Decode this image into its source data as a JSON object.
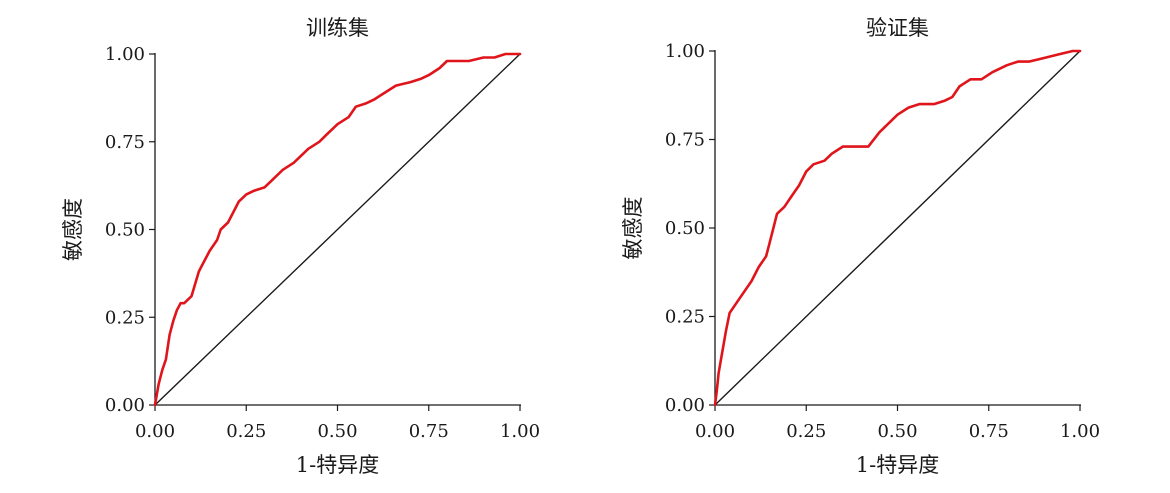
{
  "chart_data": [
    {
      "type": "line",
      "title": "训练集",
      "xlabel": "1-特异度",
      "ylabel": "敏感度",
      "xlim": [
        0,
        1
      ],
      "ylim": [
        0,
        1
      ],
      "xticks": [
        "0.00",
        "0.25",
        "0.50",
        "0.75",
        "1.00"
      ],
      "yticks": [
        "0.00",
        "0.25",
        "0.50",
        "0.75",
        "1.00"
      ],
      "grid": false,
      "series": [
        {
          "color": "#e0151b",
          "x": [
            0,
            0.005,
            0.01,
            0.02,
            0.03,
            0.04,
            0.05,
            0.06,
            0.07,
            0.08,
            0.1,
            0.12,
            0.13,
            0.14,
            0.15,
            0.17,
            0.18,
            0.2,
            0.22,
            0.23,
            0.25,
            0.27,
            0.3,
            0.32,
            0.35,
            0.38,
            0.4,
            0.42,
            0.45,
            0.47,
            0.5,
            0.53,
            0.55,
            0.58,
            0.6,
            0.63,
            0.66,
            0.7,
            0.73,
            0.75,
            0.78,
            0.8,
            0.83,
            0.86,
            0.9,
            0.93,
            0.96,
            1.0
          ],
          "y": [
            0,
            0.03,
            0.06,
            0.1,
            0.13,
            0.2,
            0.24,
            0.27,
            0.29,
            0.29,
            0.31,
            0.38,
            0.4,
            0.42,
            0.44,
            0.47,
            0.5,
            0.52,
            0.56,
            0.58,
            0.6,
            0.61,
            0.62,
            0.64,
            0.67,
            0.69,
            0.71,
            0.73,
            0.75,
            0.77,
            0.8,
            0.82,
            0.85,
            0.86,
            0.87,
            0.89,
            0.91,
            0.92,
            0.93,
            0.94,
            0.96,
            0.98,
            0.98,
            0.98,
            0.99,
            0.99,
            1.0,
            1.0
          ]
        },
        {
          "color": "#1a1a1a",
          "x": [
            0,
            1
          ],
          "y": [
            0,
            1
          ]
        }
      ]
    },
    {
      "type": "line",
      "title": "验证集",
      "xlabel": "1-特异度",
      "ylabel": "敏感度",
      "xlim": [
        0,
        1
      ],
      "ylim": [
        0,
        1
      ],
      "xticks": [
        "0.00",
        "0.25",
        "0.50",
        "0.75",
        "1.00"
      ],
      "yticks": [
        "0.00",
        "0.25",
        "0.50",
        "0.75",
        "1.00"
      ],
      "grid": false,
      "series": [
        {
          "color": "#e0151b",
          "x": [
            0,
            0.005,
            0.01,
            0.02,
            0.03,
            0.04,
            0.06,
            0.08,
            0.1,
            0.12,
            0.14,
            0.15,
            0.16,
            0.17,
            0.19,
            0.21,
            0.23,
            0.25,
            0.27,
            0.3,
            0.32,
            0.35,
            0.38,
            0.42,
            0.45,
            0.48,
            0.5,
            0.53,
            0.56,
            0.6,
            0.63,
            0.65,
            0.67,
            0.7,
            0.73,
            0.76,
            0.8,
            0.83,
            0.86,
            0.9,
            0.94,
            0.98,
            1.0
          ],
          "y": [
            0,
            0.04,
            0.09,
            0.15,
            0.21,
            0.26,
            0.29,
            0.32,
            0.35,
            0.39,
            0.42,
            0.46,
            0.5,
            0.54,
            0.56,
            0.59,
            0.62,
            0.66,
            0.68,
            0.69,
            0.71,
            0.73,
            0.73,
            0.73,
            0.77,
            0.8,
            0.82,
            0.84,
            0.85,
            0.85,
            0.86,
            0.87,
            0.9,
            0.92,
            0.92,
            0.94,
            0.96,
            0.97,
            0.97,
            0.98,
            0.99,
            1.0,
            1.0
          ]
        },
        {
          "color": "#1a1a1a",
          "x": [
            0,
            1
          ],
          "y": [
            0,
            1
          ]
        }
      ]
    }
  ]
}
